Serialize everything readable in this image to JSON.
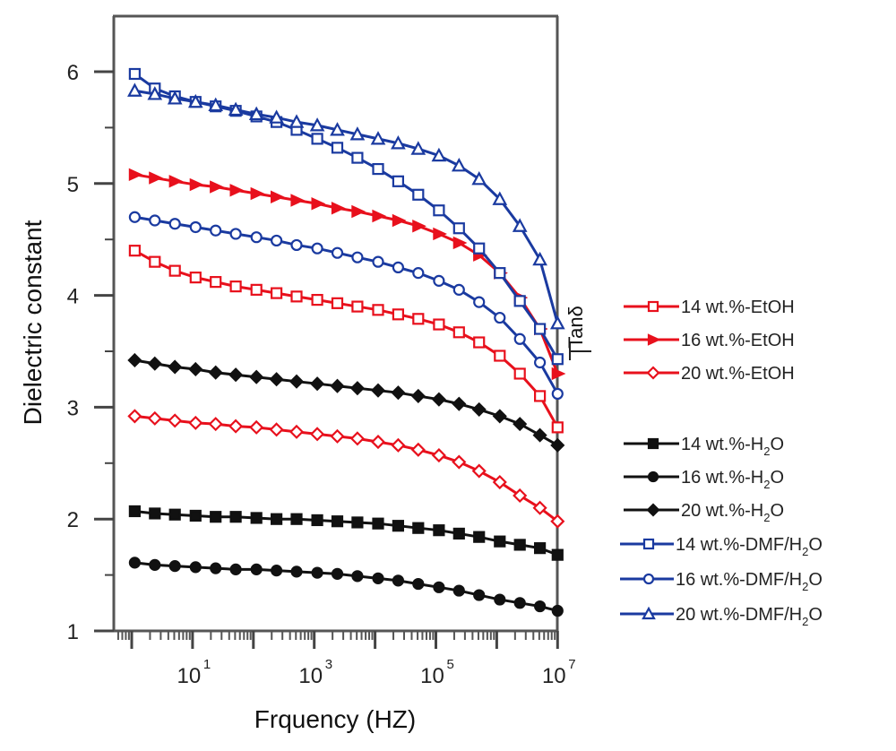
{
  "chart_data": {
    "type": "line",
    "title": "",
    "xlabel": "Frquency (HZ)",
    "ylabel": "Dielectric constant",
    "right_label": "Tanδ",
    "xscale": "log",
    "xlim_log10": [
      -0.3,
      7
    ],
    "ylim": [
      1,
      6.5
    ],
    "yticks": [
      1,
      2,
      3,
      4,
      5,
      6
    ],
    "ytick_labels": [
      "1",
      "2",
      "3",
      "4",
      "5",
      "6"
    ],
    "xtick_major_log10": [
      1,
      3,
      5,
      7
    ],
    "xtick_labels": [
      {
        "base": "10",
        "exp": "1"
      },
      {
        "base": "10",
        "exp": "3"
      },
      {
        "base": "10",
        "exp": "5"
      },
      {
        "base": "10",
        "exp": "7"
      }
    ],
    "legend_position": "right",
    "x_log10": [
      0.05,
      0.38,
      0.71,
      1.05,
      1.38,
      1.71,
      2.05,
      2.38,
      2.71,
      3.05,
      3.38,
      3.71,
      4.05,
      4.38,
      4.71,
      5.05,
      5.38,
      5.71,
      6.05,
      6.38,
      6.71,
      7.0
    ],
    "series": [
      {
        "name": "14 wt.%-EtOH",
        "sub": "",
        "color": "#e8101c",
        "marker": "square-open",
        "legend_group": 0,
        "values": [
          4.4,
          4.3,
          4.22,
          4.16,
          4.12,
          4.08,
          4.05,
          4.02,
          3.99,
          3.96,
          3.93,
          3.9,
          3.87,
          3.83,
          3.79,
          3.74,
          3.67,
          3.58,
          3.46,
          3.3,
          3.1,
          2.82
        ]
      },
      {
        "name": "16 wt.%-EtOH",
        "sub": "",
        "color": "#e8101c",
        "marker": "triangle-right",
        "legend_group": 0,
        "values": [
          5.08,
          5.05,
          5.02,
          4.99,
          4.97,
          4.94,
          4.91,
          4.88,
          4.85,
          4.82,
          4.78,
          4.75,
          4.71,
          4.67,
          4.62,
          4.55,
          4.47,
          4.36,
          4.2,
          3.98,
          3.7,
          3.3
        ]
      },
      {
        "name": "20 wt.%-EtOH",
        "sub": "",
        "color": "#e8101c",
        "marker": "diamond-open",
        "legend_group": 0,
        "values": [
          2.92,
          2.9,
          2.88,
          2.86,
          2.85,
          2.83,
          2.82,
          2.8,
          2.78,
          2.76,
          2.74,
          2.72,
          2.69,
          2.66,
          2.62,
          2.57,
          2.51,
          2.43,
          2.33,
          2.21,
          2.1,
          1.98
        ]
      },
      {
        "name": "14 wt.%-H",
        "sub": "2",
        "tail": "O",
        "color": "#111111",
        "marker": "square",
        "legend_group": 1,
        "values": [
          2.07,
          2.05,
          2.04,
          2.03,
          2.02,
          2.02,
          2.01,
          2.0,
          2.0,
          1.99,
          1.98,
          1.97,
          1.96,
          1.94,
          1.92,
          1.9,
          1.87,
          1.84,
          1.8,
          1.77,
          1.74,
          1.68
        ]
      },
      {
        "name": "16 wt.%-H",
        "sub": "2",
        "tail": "O",
        "color": "#111111",
        "marker": "circle",
        "legend_group": 1,
        "values": [
          1.61,
          1.59,
          1.58,
          1.57,
          1.56,
          1.55,
          1.55,
          1.54,
          1.53,
          1.52,
          1.51,
          1.49,
          1.47,
          1.45,
          1.42,
          1.39,
          1.36,
          1.32,
          1.28,
          1.25,
          1.22,
          1.18
        ]
      },
      {
        "name": "20 wt.%-H",
        "sub": "2",
        "tail": "O",
        "color": "#111111",
        "marker": "diamond",
        "legend_group": 1,
        "values": [
          3.42,
          3.39,
          3.36,
          3.34,
          3.31,
          3.29,
          3.27,
          3.25,
          3.23,
          3.21,
          3.19,
          3.17,
          3.15,
          3.13,
          3.1,
          3.07,
          3.03,
          2.98,
          2.92,
          2.85,
          2.75,
          2.66
        ]
      },
      {
        "name": "14 wt.%-DMF/H",
        "sub": "2",
        "tail": "O",
        "color": "#1a3aa0",
        "marker": "square-open",
        "legend_group": 2,
        "values": [
          5.98,
          5.85,
          5.78,
          5.73,
          5.69,
          5.65,
          5.6,
          5.55,
          5.48,
          5.4,
          5.32,
          5.23,
          5.13,
          5.02,
          4.9,
          4.76,
          4.6,
          4.42,
          4.2,
          3.95,
          3.7,
          3.43
        ]
      },
      {
        "name": "16 wt.%-DMF/H",
        "sub": "2",
        "tail": "O",
        "color": "#1a3aa0",
        "marker": "circle-open",
        "legend_group": 2,
        "values": [
          4.7,
          4.67,
          4.64,
          4.61,
          4.58,
          4.55,
          4.52,
          4.49,
          4.45,
          4.42,
          4.38,
          4.34,
          4.3,
          4.25,
          4.2,
          4.13,
          4.05,
          3.94,
          3.8,
          3.61,
          3.4,
          3.12
        ]
      },
      {
        "name": "20 wt.%-DMF/H",
        "sub": "2",
        "tail": "O",
        "color": "#1a3aa0",
        "marker": "triangle-open",
        "legend_group": 2,
        "values": [
          5.83,
          5.8,
          5.76,
          5.73,
          5.7,
          5.66,
          5.62,
          5.59,
          5.55,
          5.52,
          5.48,
          5.44,
          5.4,
          5.36,
          5.31,
          5.25,
          5.16,
          5.04,
          4.86,
          4.62,
          4.32,
          3.75
        ]
      }
    ]
  }
}
